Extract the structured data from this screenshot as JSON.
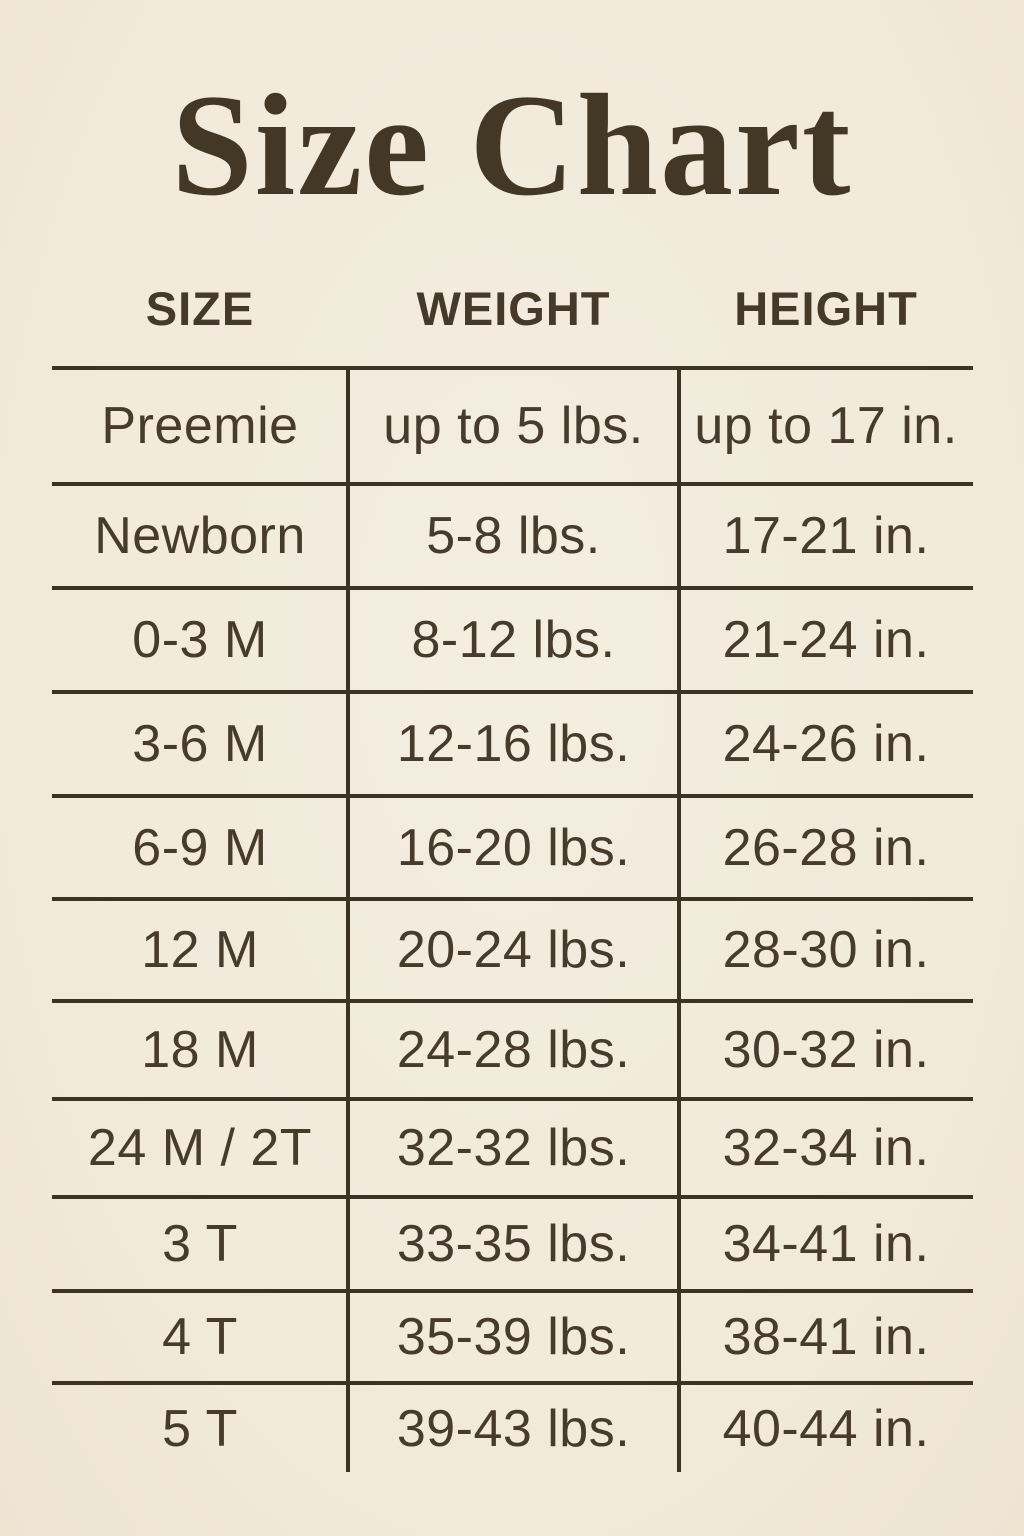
{
  "title": "Size Chart",
  "colors": {
    "background": "#F2EBDC",
    "text": "#473B2B",
    "line": "#3D3325"
  },
  "chart_data": {
    "type": "table",
    "title": "Size Chart",
    "columns": [
      "SIZE",
      "WEIGHT",
      "HEIGHT"
    ],
    "rows": [
      [
        "Preemie",
        "up to 5 lbs.",
        "up to 17 in."
      ],
      [
        "Newborn",
        "5-8 lbs.",
        "17-21 in."
      ],
      [
        "0-3 M",
        "8-12 lbs.",
        "21-24 in."
      ],
      [
        "3-6 M",
        "12-16 lbs.",
        "24-26 in."
      ],
      [
        "6-9 M",
        "16-20 lbs.",
        "26-28 in."
      ],
      [
        "12 M",
        "20-24 lbs.",
        "28-30 in."
      ],
      [
        "18 M",
        "24-28 lbs.",
        "30-32 in."
      ],
      [
        "24 M / 2T",
        "32-32 lbs.",
        "32-34 in."
      ],
      [
        "3 T",
        "33-35 lbs.",
        "34-41 in."
      ],
      [
        "4 T",
        "35-39 lbs.",
        "38-41 in."
      ],
      [
        "5 T",
        "39-43 lbs.",
        "40-44 in."
      ]
    ]
  }
}
